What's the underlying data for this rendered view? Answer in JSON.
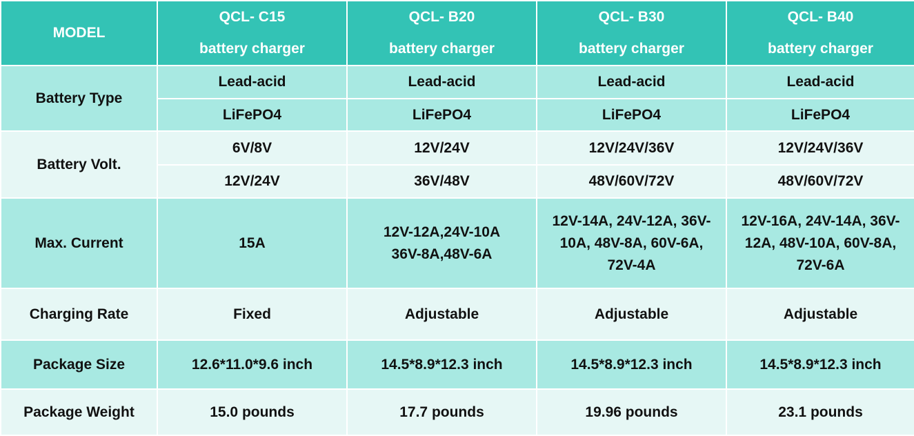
{
  "table": {
    "header": {
      "label": "MODEL",
      "models": [
        {
          "name": "QCL- C15",
          "subtitle": "battery charger"
        },
        {
          "name": "QCL- B20",
          "subtitle": "battery charger"
        },
        {
          "name": "QCL- B30",
          "subtitle": "battery charger"
        },
        {
          "name": "QCL- B40",
          "subtitle": "battery charger"
        }
      ]
    },
    "rows": [
      {
        "label": "Battery Type",
        "subrows": [
          [
            "Lead-acid",
            "Lead-acid",
            "Lead-acid",
            "Lead-acid"
          ],
          [
            "LiFePO4",
            "LiFePO4",
            "LiFePO4",
            "LiFePO4"
          ]
        ]
      },
      {
        "label": "Battery Volt.",
        "subrows": [
          [
            "6V/8V",
            "12V/24V",
            "12V/24V/36V",
            "12V/24V/36V"
          ],
          [
            "12V/24V",
            "36V/48V",
            "48V/60V/72V",
            "48V/60V/72V"
          ]
        ]
      },
      {
        "label": "Max. Current",
        "cells": [
          [
            "15A"
          ],
          [
            "12V-12A,24V-10A",
            "36V-8A,48V-6A"
          ],
          [
            "12V-14A, 24V-12A, 36V-",
            "10A, 48V-8A, 60V-6A,",
            "72V-4A"
          ],
          [
            "12V-16A, 24V-14A, 36V-",
            "12A, 48V-10A, 60V-8A,",
            "72V-6A"
          ]
        ]
      },
      {
        "label": "Charging Rate",
        "cells": [
          [
            "Fixed"
          ],
          [
            "Adjustable"
          ],
          [
            "Adjustable"
          ],
          [
            "Adjustable"
          ]
        ]
      },
      {
        "label": "Package Size",
        "cells": [
          [
            "12.6*11.0*9.6 inch"
          ],
          [
            "14.5*8.9*12.3 inch"
          ],
          [
            "14.5*8.9*12.3 inch"
          ],
          [
            "14.5*8.9*12.3 inch"
          ]
        ]
      },
      {
        "label": "Package Weight",
        "cells": [
          [
            "15.0 pounds"
          ],
          [
            "17.7 pounds"
          ],
          [
            "19.96 pounds"
          ],
          [
            "23.1 pounds"
          ]
        ]
      }
    ]
  }
}
